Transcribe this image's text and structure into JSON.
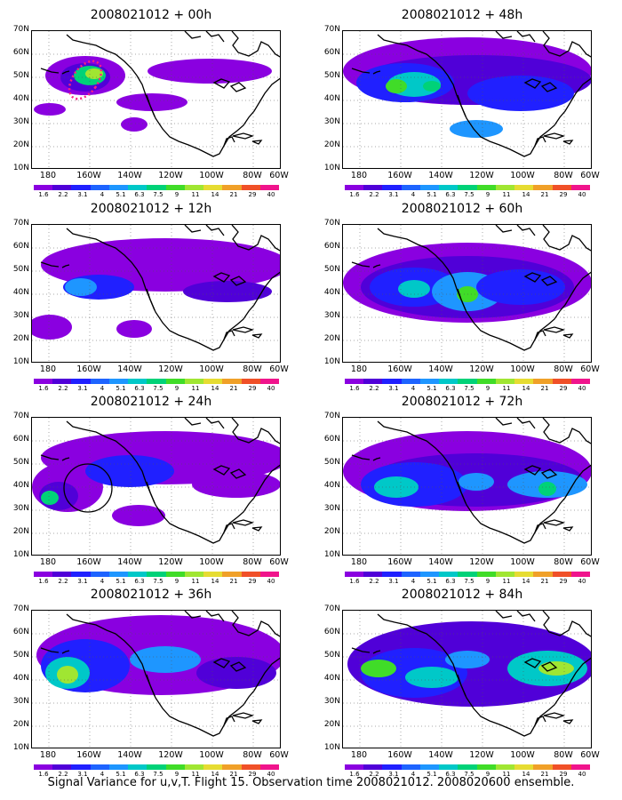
{
  "panels": [
    {
      "title": "2008021012 + 00h"
    },
    {
      "title": "2008021012 + 48h"
    },
    {
      "title": "2008021012 + 12h"
    },
    {
      "title": "2008021012 + 60h"
    },
    {
      "title": "2008021012 + 24h"
    },
    {
      "title": "2008021012 + 72h"
    },
    {
      "title": "2008021012 + 36h"
    },
    {
      "title": "2008021012 + 84h"
    }
  ],
  "lat_labels": [
    "70N",
    "60N",
    "50N",
    "40N",
    "30N",
    "20N",
    "10N"
  ],
  "lon_labels": [
    "180",
    "160W",
    "140W",
    "120W",
    "100W",
    "80W",
    "60W"
  ],
  "colorbar": {
    "labels": [
      "1.6",
      "2.2",
      "3.1",
      "4",
      "5.1",
      "6.3",
      "7.5",
      "9",
      "11",
      "14",
      "21",
      "29",
      "40"
    ],
    "colors": [
      "#8a00e0",
      "#5000d8",
      "#2020ff",
      "#1e64ff",
      "#1e96ff",
      "#00c8c8",
      "#00d278",
      "#40dc28",
      "#a0e632",
      "#e6dc32",
      "#f0a028",
      "#f05028",
      "#f0148c"
    ]
  },
  "caption": "Signal Variance for u,v,T. Flight 15. Observation time 2008021012. 2008020600 ensemble."
}
